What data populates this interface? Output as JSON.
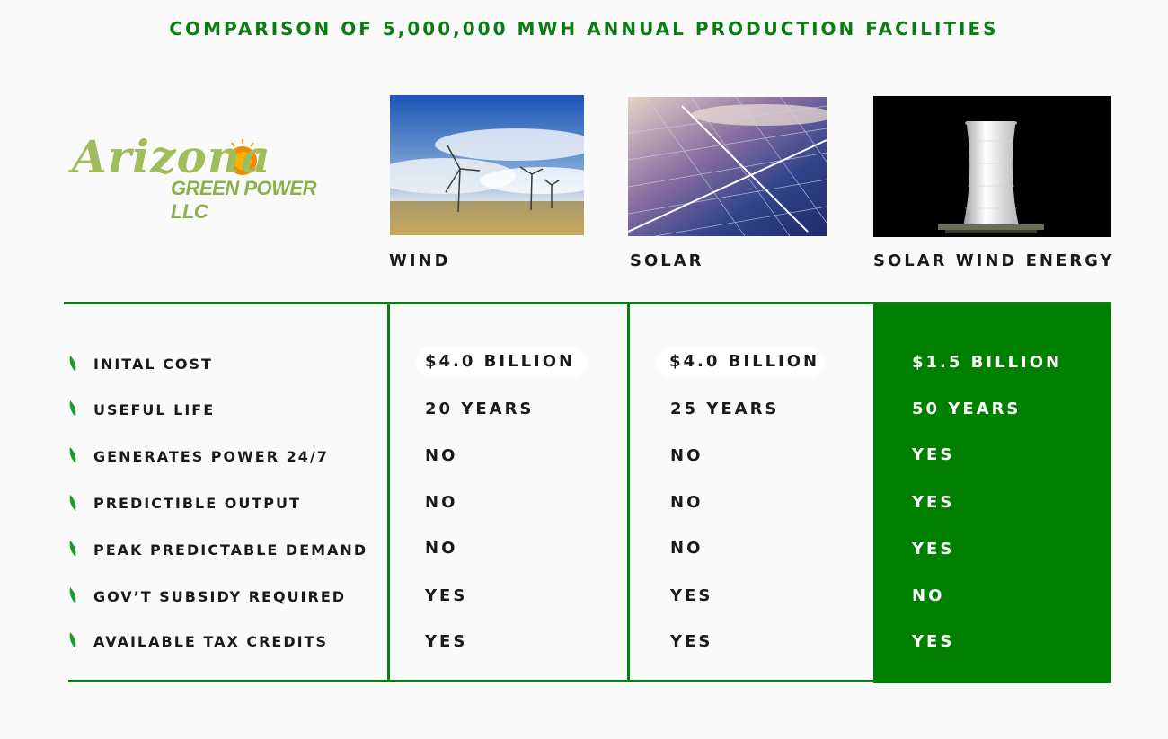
{
  "title": "COMPARISON OF 5,000,000 MWH ANNUAL PRODUCTION FACILITIES",
  "logo": {
    "line1": "Arizona",
    "line2": "GREEN POWER LLC"
  },
  "columns": [
    {
      "label": "WIND",
      "image": "wind-turbines-photo"
    },
    {
      "label": "SOLAR",
      "image": "solar-panels-photo"
    },
    {
      "label": "SOLAR WIND ENERGY",
      "image": "solar-wind-tower-photo"
    }
  ],
  "rows": [
    {
      "label": "INITAL COST",
      "values": [
        "$4.0 BILLION",
        "$4.0 BILLION",
        "$1.5 BILLION"
      ]
    },
    {
      "label": "USEFUL LIFE",
      "values": [
        "20 YEARS",
        "25 YEARS",
        "50 YEARS"
      ]
    },
    {
      "label": "GENERATES POWER 24/7",
      "values": [
        "NO",
        "NO",
        "YES"
      ]
    },
    {
      "label": "PREDICTIBLE OUTPUT",
      "values": [
        "NO",
        "NO",
        "YES"
      ]
    },
    {
      "label": "PEAK PREDICTABLE DEMAND",
      "values": [
        "NO",
        "NO",
        "YES"
      ]
    },
    {
      "label": "GOV’T SUBSIDY REQUIRED",
      "values": [
        "YES",
        "YES",
        "NO"
      ]
    },
    {
      "label": "AVAILABLE TAX CREDITS",
      "values": [
        "YES",
        "YES",
        "YES"
      ]
    }
  ],
  "colors": {
    "brand_green": "#0b7d12",
    "highlight_column": "#007f00",
    "logo_green": "#9fbd5a",
    "logo_sun": "#f08a00"
  }
}
